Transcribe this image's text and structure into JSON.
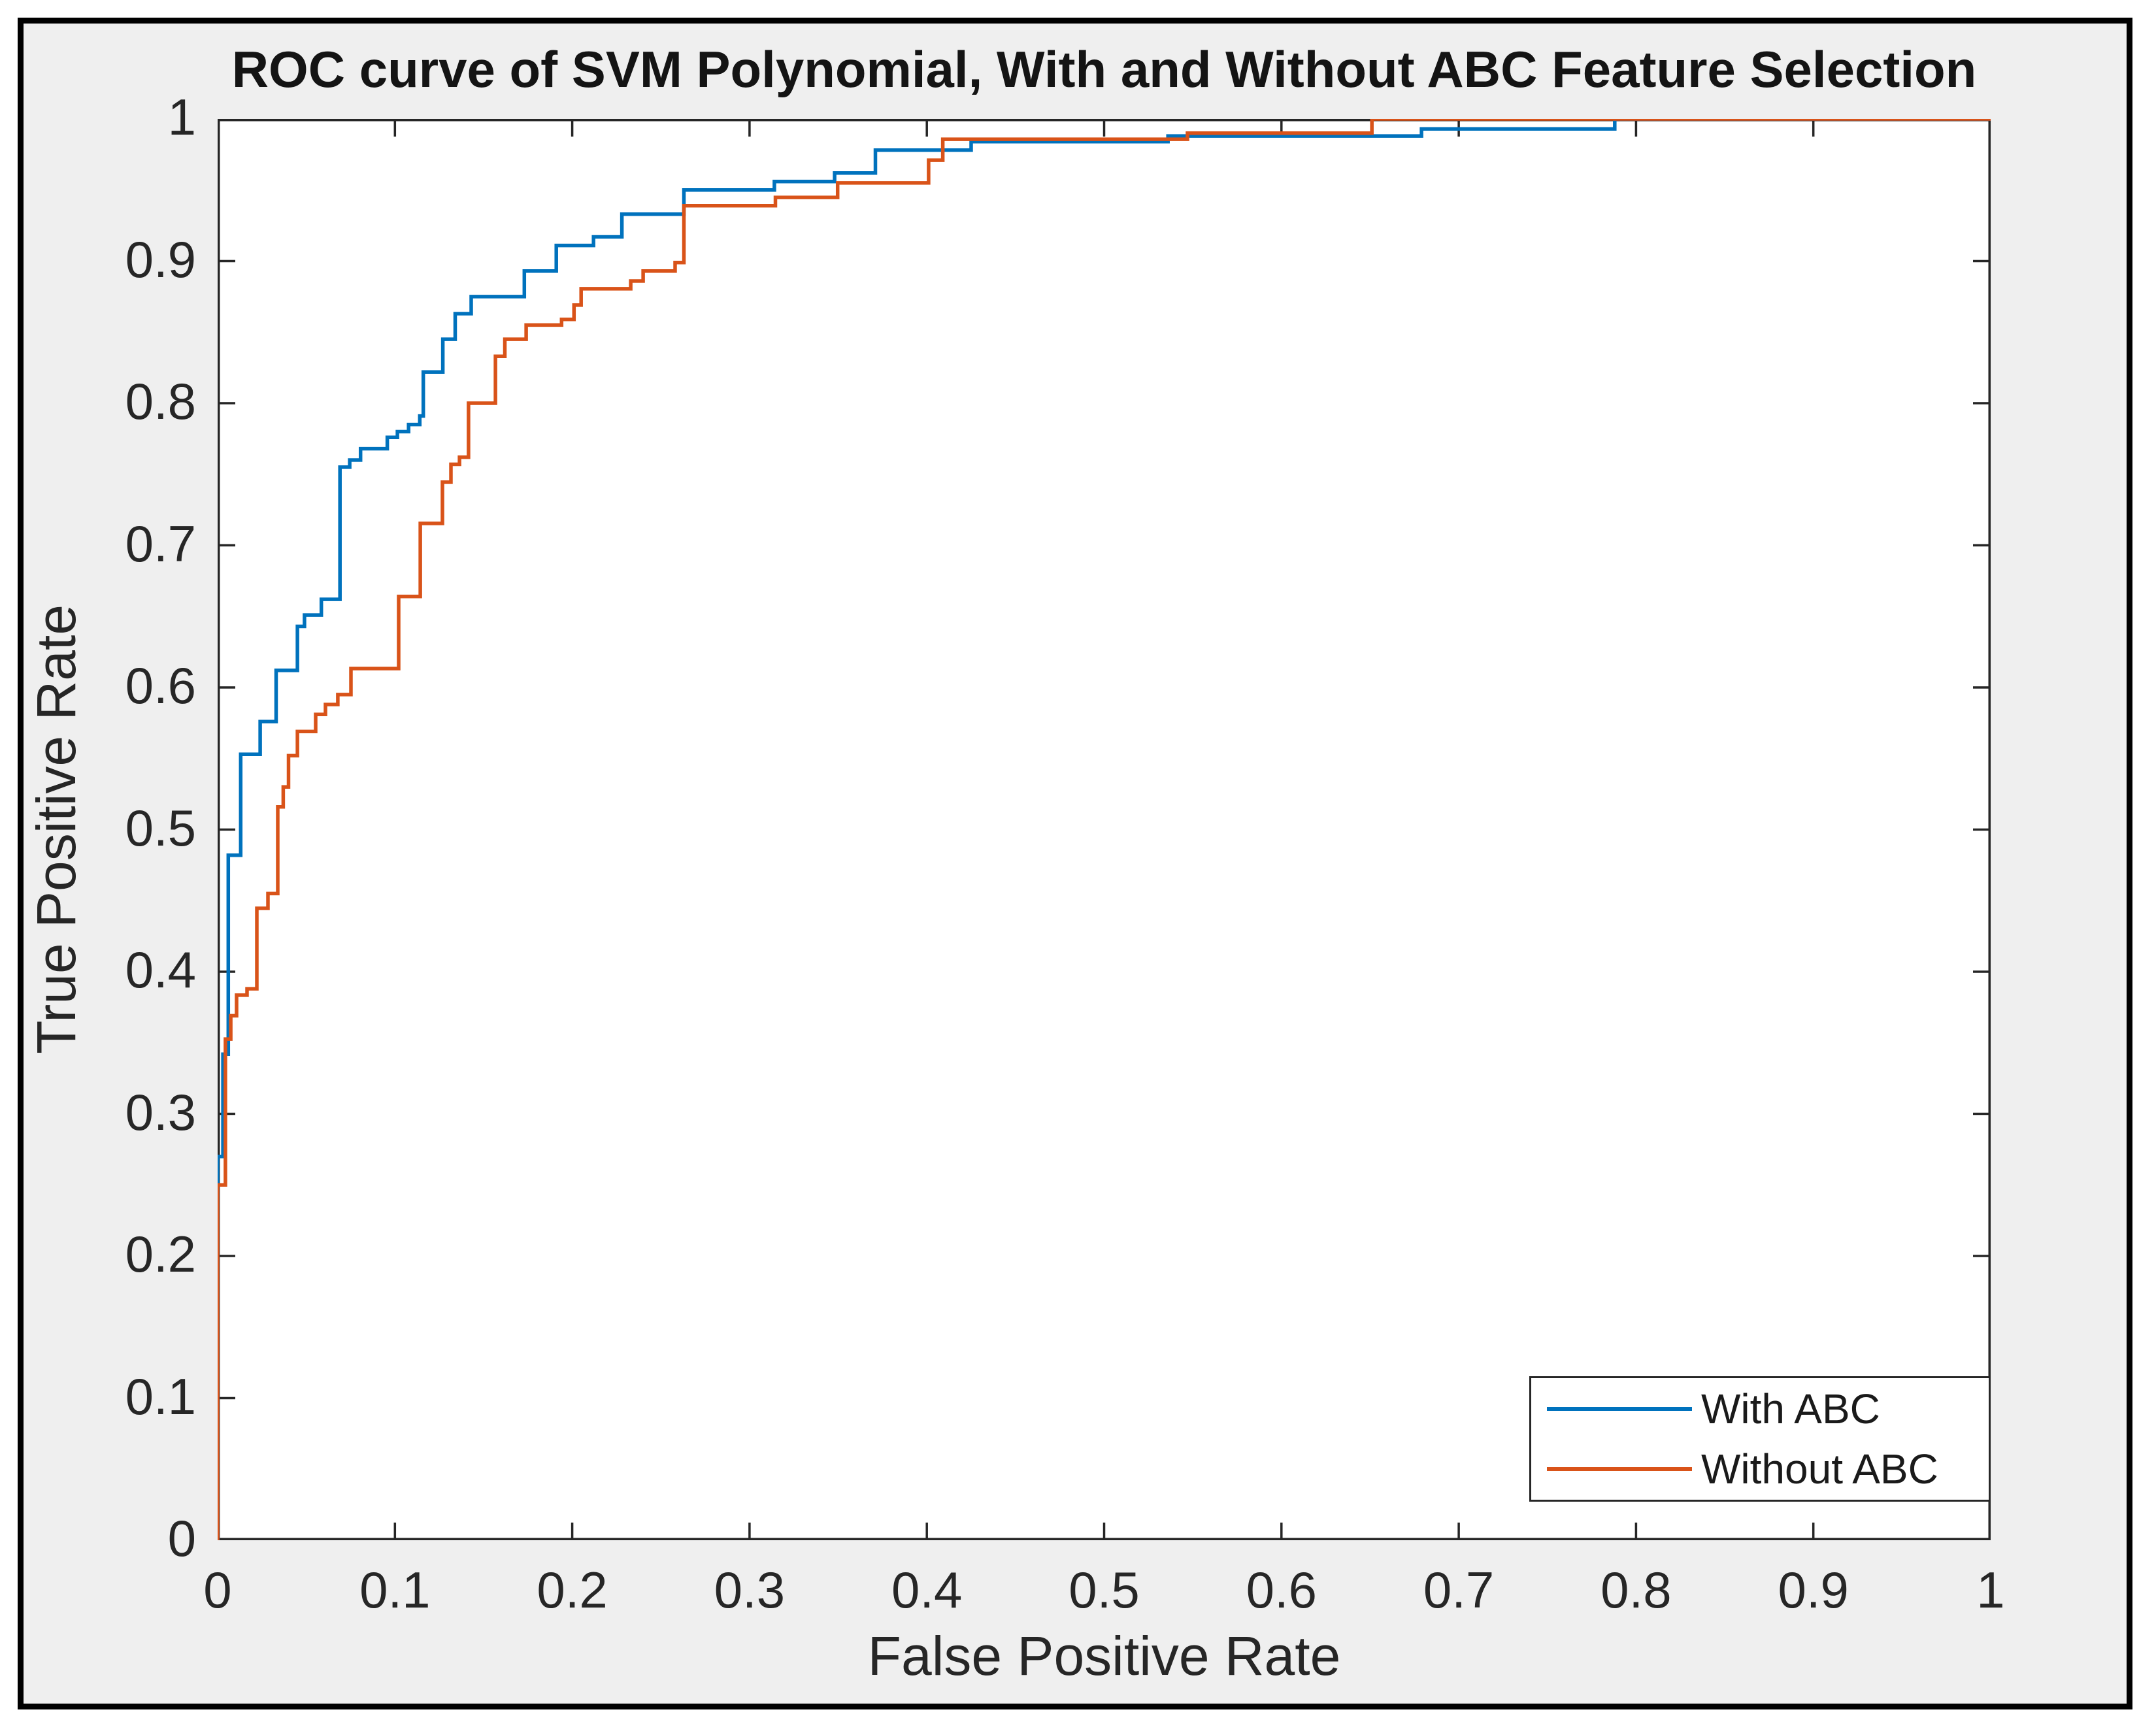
{
  "figure": {
    "background_color": "#efefef",
    "plot_background_color": "#ffffff",
    "frame_color": "#000000",
    "axes_color": "#262626"
  },
  "chart_data": {
    "type": "line",
    "subtype": "roc-step-curves",
    "title": "ROC curve of SVM Polynomial, With and Without ABC Feature Selection",
    "xlabel": "False Positive Rate",
    "ylabel": "True Positive Rate",
    "xlim": [
      0,
      1
    ],
    "ylim": [
      0,
      1
    ],
    "grid": false,
    "x_ticks": [
      "0",
      "0.1",
      "0.2",
      "0.3",
      "0.4",
      "0.5",
      "0.6",
      "0.7",
      "0.8",
      "0.9",
      "1"
    ],
    "y_ticks": [
      "0",
      "0.1",
      "0.2",
      "0.3",
      "0.4",
      "0.5",
      "0.6",
      "0.7",
      "0.8",
      "0.9",
      "1"
    ],
    "legend": {
      "position": "southeast",
      "entries": [
        "With ABC",
        "Without ABC"
      ]
    },
    "series": [
      {
        "name": "With ABC",
        "color": "#0072BD",
        "points": [
          [
            0,
            0
          ],
          [
            0,
            0.27
          ],
          [
            0.003,
            0.27
          ],
          [
            0.003,
            0.342
          ],
          [
            0.006,
            0.342
          ],
          [
            0.006,
            0.482
          ],
          [
            0.013,
            0.482
          ],
          [
            0.013,
            0.553
          ],
          [
            0.024,
            0.553
          ],
          [
            0.024,
            0.576
          ],
          [
            0.033,
            0.576
          ],
          [
            0.033,
            0.612
          ],
          [
            0.045,
            0.612
          ],
          [
            0.045,
            0.643
          ],
          [
            0.049,
            0.643
          ],
          [
            0.049,
            0.651
          ],
          [
            0.0585,
            0.651
          ],
          [
            0.0585,
            0.662
          ],
          [
            0.069,
            0.662
          ],
          [
            0.069,
            0.755
          ],
          [
            0.0745,
            0.755
          ],
          [
            0.0745,
            0.76
          ],
          [
            0.0806,
            0.76
          ],
          [
            0.0806,
            0.768
          ],
          [
            0.0957,
            0.768
          ],
          [
            0.0957,
            0.776
          ],
          [
            0.1014,
            0.776
          ],
          [
            0.1014,
            0.78
          ],
          [
            0.1077,
            0.78
          ],
          [
            0.1077,
            0.785
          ],
          [
            0.114,
            0.785
          ],
          [
            0.114,
            0.791
          ],
          [
            0.116,
            0.791
          ],
          [
            0.116,
            0.822
          ],
          [
            0.127,
            0.822
          ],
          [
            0.127,
            0.845
          ],
          [
            0.134,
            0.845
          ],
          [
            0.134,
            0.863
          ],
          [
            0.143,
            0.863
          ],
          [
            0.143,
            0.875
          ],
          [
            0.173,
            0.875
          ],
          [
            0.173,
            0.893
          ],
          [
            0.191,
            0.893
          ],
          [
            0.191,
            0.911
          ],
          [
            0.212,
            0.911
          ],
          [
            0.212,
            0.917
          ],
          [
            0.228,
            0.917
          ],
          [
            0.228,
            0.933
          ],
          [
            0.263,
            0.933
          ],
          [
            0.263,
            0.95
          ],
          [
            0.314,
            0.95
          ],
          [
            0.314,
            0.956
          ],
          [
            0.348,
            0.956
          ],
          [
            0.348,
            0.962
          ],
          [
            0.371,
            0.962
          ],
          [
            0.371,
            0.978
          ],
          [
            0.425,
            0.978
          ],
          [
            0.425,
            0.984
          ],
          [
            0.536,
            0.984
          ],
          [
            0.536,
            0.988
          ],
          [
            0.679,
            0.988
          ],
          [
            0.679,
            0.993
          ],
          [
            0.788,
            0.993
          ],
          [
            0.788,
            1
          ],
          [
            1,
            1
          ]
        ]
      },
      {
        "name": "Without ABC",
        "color": "#D95319",
        "points": [
          [
            0,
            0
          ],
          [
            0,
            0.25
          ],
          [
            0.0044,
            0.25
          ],
          [
            0.0044,
            0.3526
          ],
          [
            0.0074,
            0.3526
          ],
          [
            0.0074,
            0.369
          ],
          [
            0.0107,
            0.369
          ],
          [
            0.0107,
            0.3835
          ],
          [
            0.0166,
            0.3835
          ],
          [
            0.0166,
            0.388
          ],
          [
            0.0221,
            0.388
          ],
          [
            0.0221,
            0.4446
          ],
          [
            0.0284,
            0.4446
          ],
          [
            0.0284,
            0.455
          ],
          [
            0.0339,
            0.455
          ],
          [
            0.0339,
            0.516
          ],
          [
            0.037,
            0.516
          ],
          [
            0.037,
            0.53
          ],
          [
            0.04,
            0.53
          ],
          [
            0.04,
            0.552
          ],
          [
            0.045,
            0.552
          ],
          [
            0.045,
            0.569
          ],
          [
            0.0553,
            0.569
          ],
          [
            0.0553,
            0.581
          ],
          [
            0.0608,
            0.581
          ],
          [
            0.0608,
            0.588
          ],
          [
            0.0678,
            0.588
          ],
          [
            0.0678,
            0.595
          ],
          [
            0.0752,
            0.595
          ],
          [
            0.0752,
            0.6133
          ],
          [
            0.1021,
            0.6133
          ],
          [
            0.1021,
            0.664
          ],
          [
            0.1143,
            0.664
          ],
          [
            0.1143,
            0.7154
          ],
          [
            0.1268,
            0.7154
          ],
          [
            0.1268,
            0.7444
          ],
          [
            0.1316,
            0.7444
          ],
          [
            0.1316,
            0.757
          ],
          [
            0.1364,
            0.757
          ],
          [
            0.1364,
            0.762
          ],
          [
            0.1415,
            0.762
          ],
          [
            0.1415,
            0.8
          ],
          [
            0.1567,
            0.8
          ],
          [
            0.1567,
            0.833
          ],
          [
            0.162,
            0.833
          ],
          [
            0.162,
            0.845
          ],
          [
            0.174,
            0.845
          ],
          [
            0.174,
            0.855
          ],
          [
            0.194,
            0.855
          ],
          [
            0.194,
            0.859
          ],
          [
            0.201,
            0.859
          ],
          [
            0.201,
            0.869
          ],
          [
            0.205,
            0.869
          ],
          [
            0.205,
            0.8805
          ],
          [
            0.233,
            0.8805
          ],
          [
            0.233,
            0.886
          ],
          [
            0.24,
            0.886
          ],
          [
            0.24,
            0.893
          ],
          [
            0.258,
            0.893
          ],
          [
            0.258,
            0.899
          ],
          [
            0.263,
            0.899
          ],
          [
            0.263,
            0.939
          ],
          [
            0.3146,
            0.939
          ],
          [
            0.3146,
            0.9448
          ],
          [
            0.3497,
            0.9448
          ],
          [
            0.3497,
            0.955
          ],
          [
            0.401,
            0.955
          ],
          [
            0.401,
            0.971
          ],
          [
            0.409,
            0.971
          ],
          [
            0.409,
            0.9857
          ],
          [
            0.547,
            0.9857
          ],
          [
            0.547,
            0.99
          ],
          [
            0.651,
            0.99
          ],
          [
            0.651,
            1
          ],
          [
            1,
            1
          ]
        ]
      }
    ]
  }
}
